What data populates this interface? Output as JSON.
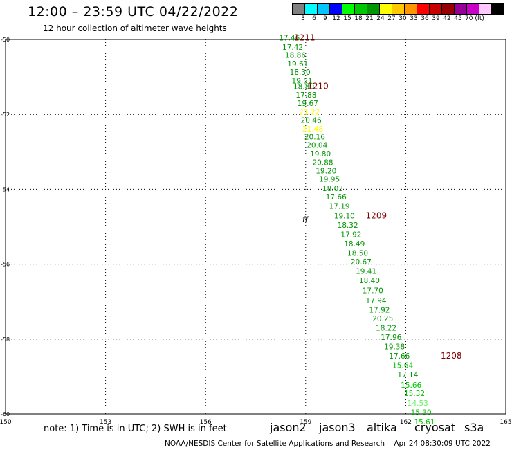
{
  "header": {
    "title": "12:00 – 23:59 UTC 04/22/2022",
    "subtitle": "12 hour collection of altimeter wave heights"
  },
  "colorbar": {
    "colors": [
      "#808080",
      "#00ffff",
      "#00c8ff",
      "#0000ff",
      "#00ff00",
      "#00c800",
      "#009600",
      "#ffff00",
      "#ffc800",
      "#ff9600",
      "#ff0000",
      "#c80000",
      "#960000",
      "#960096",
      "#c800c8",
      "#ffc8ff",
      "#000000"
    ],
    "labels": [
      "3",
      "6",
      "9",
      "12",
      "15",
      "18",
      "21",
      "24",
      "27",
      "30",
      "33",
      "36",
      "39",
      "42",
      "45",
      "70 (ft)"
    ]
  },
  "axes": {
    "lon_ticks": [
      "150",
      "153",
      "156",
      "159",
      "162",
      "165"
    ],
    "lat_ticks": [
      "-50",
      "-52",
      "-54",
      "-56",
      "-58",
      "-60"
    ]
  },
  "map": {
    "lon_range": [
      150,
      165
    ],
    "lat_range": [
      -60,
      -50
    ],
    "track": [
      {
        "lon": 158.2,
        "lat": -49.95,
        "value": "17.46",
        "color": "#009600"
      },
      {
        "lon": 158.3,
        "lat": -50.2,
        "value": "17.42",
        "color": "#009600"
      },
      {
        "lon": 158.38,
        "lat": -50.42,
        "value": "18.86",
        "color": "#009600"
      },
      {
        "lon": 158.45,
        "lat": -50.65,
        "value": "19.61",
        "color": "#009600"
      },
      {
        "lon": 158.52,
        "lat": -50.87,
        "value": "18.30",
        "color": "#009600"
      },
      {
        "lon": 158.58,
        "lat": -51.1,
        "value": "19.51",
        "color": "#009600"
      },
      {
        "lon": 158.63,
        "lat": -51.25,
        "value": "18.80",
        "color": "#009600"
      },
      {
        "lon": 158.7,
        "lat": -51.48,
        "value": "17.88",
        "color": "#009600"
      },
      {
        "lon": 158.75,
        "lat": -51.7,
        "value": "19.67",
        "color": "#009600"
      },
      {
        "lon": 158.8,
        "lat": -51.93,
        "value": "21.22",
        "color": "#ffff00"
      },
      {
        "lon": 158.85,
        "lat": -52.15,
        "value": "20.46",
        "color": "#009600"
      },
      {
        "lon": 158.9,
        "lat": -52.38,
        "value": "21.48",
        "color": "#ffff00"
      },
      {
        "lon": 158.96,
        "lat": -52.6,
        "value": "20.16",
        "color": "#009600"
      },
      {
        "lon": 159.03,
        "lat": -52.82,
        "value": "20.04",
        "color": "#009600"
      },
      {
        "lon": 159.13,
        "lat": -53.05,
        "value": "19.80",
        "color": "#009600"
      },
      {
        "lon": 159.2,
        "lat": -53.28,
        "value": "20.88",
        "color": "#009600"
      },
      {
        "lon": 159.3,
        "lat": -53.5,
        "value": "19.20",
        "color": "#009600"
      },
      {
        "lon": 159.4,
        "lat": -53.72,
        "value": "19.95",
        "color": "#009600"
      },
      {
        "lon": 159.5,
        "lat": -53.97,
        "value": "18.03",
        "color": "#009600"
      },
      {
        "lon": 159.6,
        "lat": -54.2,
        "value": "17.66",
        "color": "#009600"
      },
      {
        "lon": 159.7,
        "lat": -54.45,
        "value": "17.19",
        "color": "#009600"
      },
      {
        "lon": 159.85,
        "lat": -54.7,
        "value": "19.10",
        "color": "#009600"
      },
      {
        "lon": 159.95,
        "lat": -54.95,
        "value": "18.32",
        "color": "#009600"
      },
      {
        "lon": 160.05,
        "lat": -55.2,
        "value": "17.92",
        "color": "#009600"
      },
      {
        "lon": 160.15,
        "lat": -55.45,
        "value": "18.49",
        "color": "#009600"
      },
      {
        "lon": 160.25,
        "lat": -55.7,
        "value": "18.50",
        "color": "#009600"
      },
      {
        "lon": 160.35,
        "lat": -55.93,
        "value": "20.67",
        "color": "#009600"
      },
      {
        "lon": 160.5,
        "lat": -56.18,
        "value": "19.41",
        "color": "#009600"
      },
      {
        "lon": 160.6,
        "lat": -56.43,
        "value": "18.40",
        "color": "#009600"
      },
      {
        "lon": 160.7,
        "lat": -56.7,
        "value": "17.70",
        "color": "#009600"
      },
      {
        "lon": 160.8,
        "lat": -56.97,
        "value": "17.94",
        "color": "#009600"
      },
      {
        "lon": 160.9,
        "lat": -57.22,
        "value": "17.92",
        "color": "#009600"
      },
      {
        "lon": 161.0,
        "lat": -57.45,
        "value": "20.25",
        "color": "#009600"
      },
      {
        "lon": 161.1,
        "lat": -57.7,
        "value": "18.22",
        "color": "#009600"
      },
      {
        "lon": 161.25,
        "lat": -57.95,
        "value": "17.96",
        "color": "#009600"
      },
      {
        "lon": 161.35,
        "lat": -58.2,
        "value": "19.38",
        "color": "#009600"
      },
      {
        "lon": 161.5,
        "lat": -58.45,
        "value": "17.66",
        "color": "#009600"
      },
      {
        "lon": 161.6,
        "lat": -58.7,
        "value": "15.64",
        "color": "#00c800"
      },
      {
        "lon": 161.75,
        "lat": -58.95,
        "value": "17.14",
        "color": "#009600"
      },
      {
        "lon": 161.85,
        "lat": -59.22,
        "value": "15.66",
        "color": "#00c800"
      },
      {
        "lon": 161.95,
        "lat": -59.45,
        "value": "15.32",
        "color": "#00c800"
      },
      {
        "lon": 162.05,
        "lat": -59.7,
        "value": "14.53",
        "color": "#66ee66"
      },
      {
        "lon": 162.15,
        "lat": -59.95,
        "value": "15.30",
        "color": "#00c800"
      },
      {
        "lon": 162.25,
        "lat": -60.2,
        "value": "15.61",
        "color": "#00c800"
      }
    ],
    "time_labels": [
      {
        "lon": 158.65,
        "lat": -49.95,
        "text": "1211"
      },
      {
        "lon": 159.05,
        "lat": -51.25,
        "text": "1210"
      },
      {
        "lon": 160.8,
        "lat": -54.7,
        "text": "1209"
      },
      {
        "lon": 163.05,
        "lat": -58.45,
        "text": "1208"
      }
    ],
    "time_label_color": "#800000",
    "marker": {
      "lon": 158.9,
      "lat": -54.8,
      "text": "ff"
    }
  },
  "footer": {
    "note": "note:  1) Time is in UTC;  2) SWH is in feet",
    "satellites": [
      {
        "name": "jason2",
        "color": "#0000ff"
      },
      {
        "name": "jason3",
        "color": "#009600"
      },
      {
        "name": "altika",
        "color": "#ff8c00"
      },
      {
        "name": "cryosat",
        "color": "#ff0000"
      },
      {
        "name": "s3a",
        "color": "#800000"
      }
    ],
    "credit": "NOAA/NESDIS Center for Satellite Applications and Research",
    "timestamp": "Apr 24 08:30:09 UTC 2022"
  }
}
